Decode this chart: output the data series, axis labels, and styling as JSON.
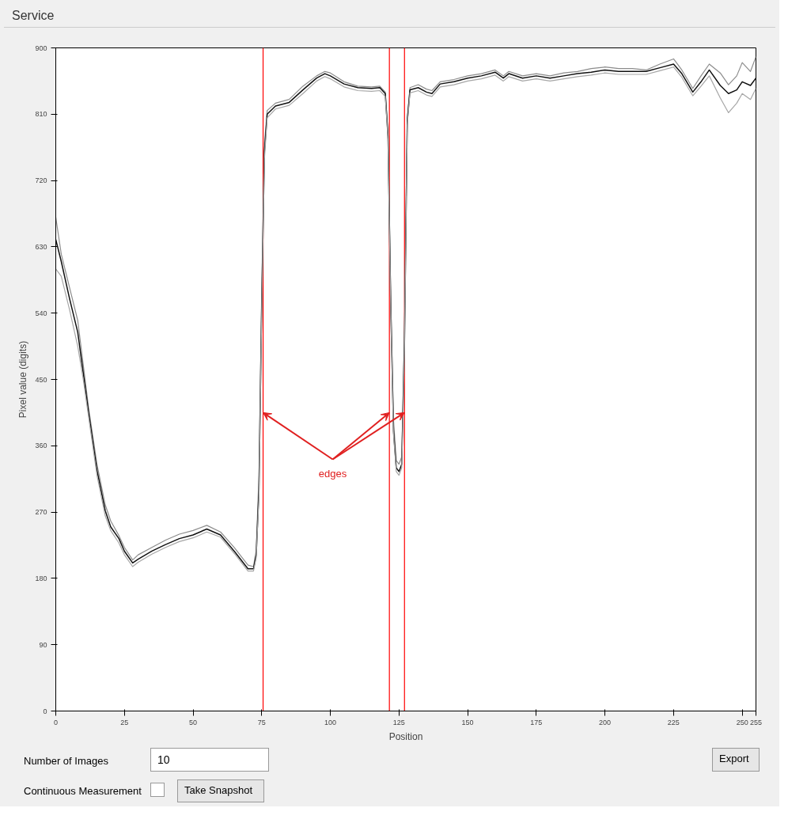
{
  "chart_data": {
    "type": "line",
    "title": "Service",
    "xlabel": "Position",
    "ylabel": "Pixel value (digits)",
    "x": [
      0,
      2,
      5,
      8,
      10,
      12,
      15,
      18,
      20,
      23,
      25,
      28,
      30,
      35,
      40,
      45,
      50,
      55,
      60,
      65,
      70,
      72,
      73,
      74,
      75,
      76,
      77,
      80,
      85,
      90,
      95,
      98,
      100,
      105,
      110,
      115,
      118,
      120,
      121,
      122,
      123,
      124,
      125,
      126,
      127,
      128,
      129,
      132,
      135,
      137,
      140,
      145,
      150,
      155,
      160,
      163,
      165,
      170,
      175,
      180,
      185,
      190,
      195,
      200,
      205,
      210,
      215,
      220,
      225,
      228,
      232,
      235,
      238,
      242,
      245,
      248,
      250,
      253,
      255
    ],
    "series": [
      {
        "color": "#8c8c8c",
        "values": [
          670,
          620,
          575,
          530,
          470,
          410,
          335,
          280,
          258,
          238,
          222,
          205,
          212,
          222,
          232,
          240,
          245,
          252,
          243,
          222,
          198,
          196,
          218,
          320,
          570,
          770,
          815,
          825,
          830,
          848,
          862,
          868,
          866,
          854,
          848,
          847,
          848,
          840,
          785,
          560,
          395,
          340,
          335,
          345,
          520,
          805,
          846,
          850,
          844,
          842,
          854,
          857,
          862,
          865,
          870,
          862,
          868,
          862,
          865,
          862,
          866,
          868,
          872,
          874,
          872,
          872,
          870,
          878,
          885,
          870,
          845,
          862,
          878,
          866,
          850,
          862,
          880,
          868,
          888
        ]
      },
      {
        "color": "#111111",
        "values": [
          640,
          610,
          560,
          514,
          459,
          404,
          327,
          272,
          250,
          234,
          217,
          201,
          206,
          217,
          226,
          234,
          239,
          247,
          239,
          217,
          193,
          193,
          212,
          300,
          550,
          760,
          810,
          821,
          826,
          843,
          859,
          865,
          862,
          851,
          846,
          845,
          846,
          838,
          780,
          550,
          380,
          330,
          325,
          335,
          500,
          800,
          843,
          846,
          840,
          838,
          851,
          854,
          859,
          862,
          867,
          859,
          865,
          859,
          862,
          859,
          862,
          865,
          867,
          870,
          868,
          868,
          868,
          873,
          878,
          865,
          840,
          854,
          870,
          849,
          838,
          843,
          854,
          849,
          859
        ]
      },
      {
        "color": "#a6a6a6",
        "values": [
          600,
          590,
          545,
          495,
          450,
          398,
          320,
          265,
          245,
          228,
          212,
          196,
          202,
          213,
          222,
          230,
          235,
          243,
          236,
          214,
          190,
          190,
          208,
          290,
          540,
          750,
          805,
          817,
          822,
          838,
          855,
          861,
          858,
          847,
          842,
          841,
          842,
          834,
          775,
          545,
          375,
          325,
          320,
          330,
          490,
          795,
          839,
          842,
          836,
          834,
          847,
          850,
          855,
          858,
          863,
          855,
          861,
          855,
          858,
          855,
          858,
          861,
          863,
          866,
          864,
          864,
          864,
          869,
          874,
          860,
          835,
          848,
          862,
          832,
          812,
          825,
          838,
          830,
          845
        ]
      }
    ],
    "xlim": [
      0,
      255
    ],
    "xticks": [
      0,
      25,
      50,
      75,
      100,
      125,
      150,
      175,
      200,
      225,
      250,
      255
    ],
    "ylim": [
      0,
      900
    ],
    "yticks": [
      0,
      90,
      180,
      270,
      360,
      450,
      540,
      630,
      720,
      810,
      900
    ],
    "grid": false,
    "line_style": "solid",
    "marker": "none",
    "ref_lines": [
      {
        "axis": "x",
        "value": 75.5,
        "color": "#ff0000"
      },
      {
        "axis": "x",
        "value": 121.5,
        "color": "#ff0000"
      },
      {
        "axis": "x",
        "value": 127,
        "color": "#ff0000"
      }
    ],
    "annotations": [
      {
        "text": "edges",
        "x": 75.5,
        "y": 405
      },
      "Number of Images",
      "10",
      "Continuous Measurement",
      "Take Snapshot",
      "Export"
    ]
  }
}
